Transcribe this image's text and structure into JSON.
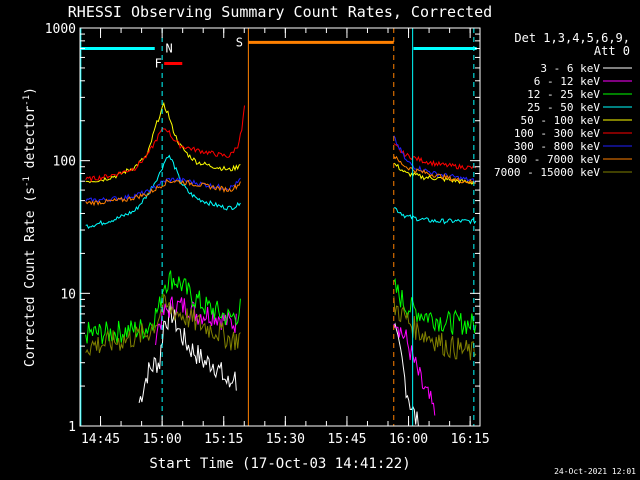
{
  "chart_data": {
    "type": "line",
    "title": "RHESSI Observing Summary Count Rates, Corrected",
    "xlabel": "Start Time (17-Oct-03 14:41:22)",
    "ylabel_main": "Corrected Count Rate (s",
    "ylabel_sup1": "-1",
    "ylabel_mid": " detector",
    "ylabel_sup2": "-1",
    "ylabel_end": ")",
    "yscale": "log",
    "ylim": [
      1,
      1000
    ],
    "xlim_minutes": [
      -1.4,
      96.0
    ],
    "x_ticks": [
      {
        "t": 3.6,
        "label": "14:45"
      },
      {
        "t": 18.6,
        "label": "15:00"
      },
      {
        "t": 33.6,
        "label": "15:15"
      },
      {
        "t": 48.6,
        "label": "15:30"
      },
      {
        "t": 63.6,
        "label": "15:45"
      },
      {
        "t": 78.6,
        "label": "16:00"
      },
      {
        "t": 93.6,
        "label": "16:15"
      }
    ],
    "y_ticks": [
      {
        "v": 1,
        "label": "1"
      },
      {
        "v": 10,
        "label": "10"
      },
      {
        "v": 100,
        "label": "100"
      },
      {
        "v": 1000,
        "label": "1000"
      }
    ],
    "legend_header1": "Det 1,3,4,5,6,9,",
    "legend_header2": "Att 0",
    "legend_position": "top-right, outside plot",
    "series": [
      {
        "name": "3 - 6 keV",
        "color": "#ffffff",
        "x": [
          13,
          15,
          17,
          18,
          19,
          21,
          23,
          25,
          27,
          29,
          31,
          33,
          35,
          36,
          37,
          75,
          76,
          77,
          78,
          79,
          80,
          81
        ],
        "y": [
          1.5,
          2.5,
          3,
          3,
          6,
          7,
          5,
          4,
          3.5,
          3,
          3,
          2.5,
          2,
          2.5,
          2,
          6,
          4,
          3,
          2,
          1.5,
          1.2,
          1
        ]
      },
      {
        "name": "6 - 12 keV",
        "color": "#ff00ff",
        "x": [
          17,
          18,
          19,
          21,
          23,
          25,
          27,
          29,
          31,
          33,
          35,
          36,
          37,
          75,
          76,
          77,
          78,
          80,
          82,
          84,
          85
        ],
        "y": [
          5,
          6,
          7,
          8,
          8,
          8,
          7,
          7,
          7,
          6.5,
          6,
          6,
          6,
          7,
          6,
          5,
          4.5,
          3,
          2,
          1.5,
          1.2
        ]
      },
      {
        "name": "12 - 25 keV",
        "color": "#00ff00",
        "x": [
          0,
          5,
          10,
          15,
          17,
          18,
          19,
          21,
          23,
          25,
          27,
          29,
          31,
          33,
          35,
          37,
          38,
          75,
          76,
          77,
          78,
          80,
          82,
          85,
          88,
          91,
          95
        ],
        "y": [
          5,
          5,
          5.2,
          5.5,
          7,
          8,
          12,
          13,
          12,
          10,
          9,
          8,
          7.5,
          7,
          6.5,
          7,
          8,
          11,
          10,
          9,
          8,
          7.5,
          7,
          6.5,
          6,
          6,
          5.8
        ]
      },
      {
        "name": "25 - 50 keV",
        "color": "#00ffff",
        "x": [
          0,
          4,
          8,
          12,
          15,
          18,
          19,
          20,
          21,
          22,
          23,
          25,
          27,
          30,
          33,
          35,
          37,
          38,
          75,
          76,
          77,
          78,
          80,
          82,
          85,
          88,
          91,
          95
        ],
        "y": [
          32,
          34,
          37,
          42,
          55,
          80,
          95,
          110,
          100,
          85,
          70,
          58,
          52,
          48,
          45,
          44,
          46,
          52,
          45,
          42,
          40,
          38,
          37,
          36,
          35,
          35,
          35,
          35
        ]
      },
      {
        "name": "50 - 100 keV",
        "color": "#ffff00",
        "x": [
          0,
          4,
          8,
          12,
          15,
          17,
          18,
          19,
          20,
          21,
          22,
          23,
          25,
          27,
          30,
          33,
          35,
          37,
          38,
          75,
          76,
          77,
          78,
          80,
          82,
          85,
          88,
          91,
          95
        ],
        "y": [
          70,
          72,
          78,
          90,
          110,
          180,
          220,
          260,
          230,
          180,
          150,
          130,
          110,
          98,
          92,
          88,
          85,
          90,
          100,
          95,
          90,
          85,
          80,
          78,
          75,
          74,
          72,
          70,
          68
        ]
      },
      {
        "name": "100 - 300 keV",
        "color": "#ff0000",
        "x": [
          0,
          4,
          8,
          12,
          15,
          17,
          18,
          19,
          20,
          21,
          22,
          23,
          25,
          27,
          30,
          33,
          35,
          37,
          38,
          39,
          75,
          76,
          77,
          78,
          80,
          82,
          85,
          88,
          91,
          95
        ],
        "y": [
          72,
          75,
          80,
          88,
          110,
          140,
          160,
          175,
          170,
          150,
          140,
          130,
          125,
          120,
          115,
          110,
          108,
          130,
          170,
          320,
          130,
          125,
          115,
          110,
          105,
          100,
          95,
          92,
          90,
          88
        ]
      },
      {
        "name": "300 - 800 keV",
        "color": "#2020ff",
        "x": [
          0,
          5,
          10,
          15,
          18,
          20,
          22,
          25,
          30,
          35,
          37,
          38,
          75,
          76,
          77,
          78,
          80,
          85,
          90,
          95
        ],
        "y": [
          50,
          51,
          53,
          58,
          67,
          72,
          72,
          70,
          65,
          62,
          68,
          75,
          150,
          130,
          115,
          100,
          90,
          80,
          75,
          70
        ]
      },
      {
        "name": "800 - 7000 keV",
        "color": "#ff8000",
        "x": [
          0,
          5,
          10,
          15,
          18,
          20,
          22,
          25,
          30,
          35,
          37,
          38,
          75,
          76,
          77,
          78,
          80,
          85,
          90,
          95
        ],
        "y": [
          48,
          49,
          51,
          56,
          64,
          70,
          70,
          68,
          64,
          60,
          65,
          72,
          110,
          100,
          95,
          90,
          85,
          78,
          72,
          68
        ]
      },
      {
        "name": "7000 - 15000 keV",
        "color": "#808000",
        "x": [
          0,
          5,
          10,
          15,
          17,
          18,
          19,
          21,
          23,
          25,
          27,
          30,
          33,
          35,
          37,
          38,
          75,
          76,
          77,
          78,
          80,
          82,
          85,
          88,
          91,
          95
        ],
        "y": [
          4,
          4.2,
          4.5,
          5,
          6,
          7,
          8,
          7.5,
          7,
          6.5,
          6,
          5.5,
          5,
          4.5,
          4.5,
          5,
          8,
          7.5,
          7,
          6.5,
          5.5,
          5,
          4.5,
          4,
          3.8,
          3.5
        ]
      }
    ],
    "intervals": [
      {
        "label": "N",
        "color": "#00ffff",
        "start_min": 18.6,
        "end_min": 18.6,
        "y": 700
      },
      {
        "label": "F",
        "color": "#ff0000",
        "start_min": 19.1,
        "end_min": 23.5,
        "y": 540
      },
      {
        "label": "S",
        "color": "#ff8000",
        "start_min": 39.6,
        "end_min": 75.0,
        "y": 780
      }
    ],
    "footer_date": "24-Oct-2021 12:01"
  }
}
